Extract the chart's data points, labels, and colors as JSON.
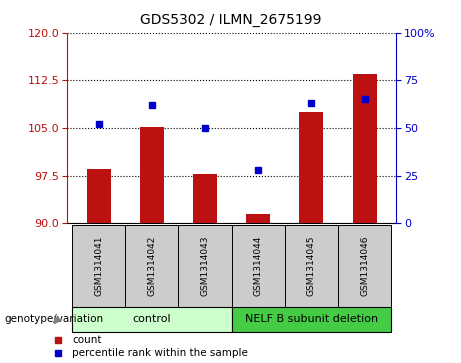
{
  "title": "GDS5302 / ILMN_2675199",
  "samples": [
    "GSM1314041",
    "GSM1314042",
    "GSM1314043",
    "GSM1314044",
    "GSM1314045",
    "GSM1314046"
  ],
  "bar_values": [
    98.5,
    105.2,
    97.8,
    91.5,
    107.5,
    113.5
  ],
  "dot_values": [
    52,
    62,
    50,
    28,
    63,
    65
  ],
  "ylim_left": [
    90,
    120
  ],
  "ylim_right": [
    0,
    100
  ],
  "yticks_left": [
    90,
    97.5,
    105,
    112.5,
    120
  ],
  "yticks_right": [
    0,
    25,
    50,
    75,
    100
  ],
  "bar_color": "#bb1111",
  "dot_color": "#0000cc",
  "bar_bottom": 90,
  "groups": [
    {
      "label": "control",
      "indices": [
        0,
        1,
        2
      ],
      "color": "#ccffcc"
    },
    {
      "label": "NELF B subunit deletion",
      "indices": [
        3,
        4,
        5
      ],
      "color": "#44cc44"
    }
  ],
  "group_label_prefix": "genotype/variation",
  "legend_items": [
    {
      "label": "count",
      "color": "#bb1111"
    },
    {
      "label": "percentile rank within the sample",
      "color": "#0000cc"
    }
  ],
  "grid_color": "#000000",
  "sample_label_bg": "#cccccc",
  "figsize": [
    4.61,
    3.63
  ],
  "dpi": 100
}
